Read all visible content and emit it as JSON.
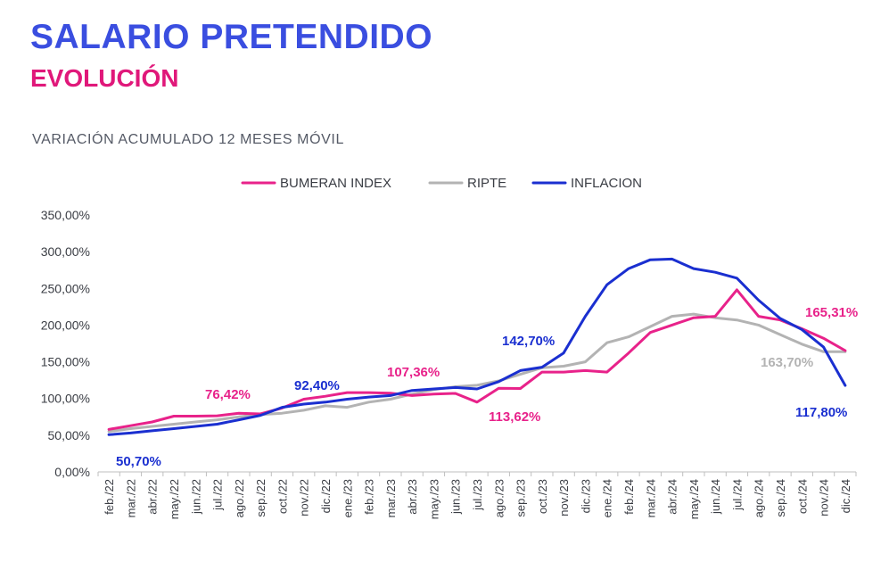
{
  "header": {
    "title": "SALARIO PRETENDIDO",
    "subtitle": "EVOLUCIÓN",
    "title_color": "#3a4ee0",
    "subtitle_color": "#e0187a"
  },
  "chart_data": {
    "type": "line",
    "title": "VARIACIÓN ACUMULADO 12 MESES MÓVIL",
    "xlabel": "",
    "ylabel": "",
    "ylim": [
      0,
      350
    ],
    "y_ticks": [
      "0,00%",
      "50,00%",
      "100,00%",
      "150,00%",
      "200,00%",
      "250,00%",
      "300,00%",
      "350,00%"
    ],
    "grid": false,
    "legend_position": "top-center",
    "categories": [
      "feb./22",
      "mar./22",
      "abr./22",
      "may./22",
      "jun./22",
      "jul./22",
      "ago./22",
      "sep./22",
      "oct./22",
      "nov./22",
      "dic./22",
      "ene./23",
      "feb./23",
      "mar./23",
      "abr./23",
      "may./23",
      "jun./23",
      "jul./23",
      "ago./23",
      "sep./23",
      "oct./23",
      "nov./23",
      "dic./23",
      "ene./24",
      "feb./24",
      "mar./24",
      "abr./24",
      "may./24",
      "jun./24",
      "jul./24",
      "ago./24",
      "sep./24",
      "oct./24",
      "nov./24",
      "dic./24"
    ],
    "series": [
      {
        "name": "BUMERAN INDEX",
        "color": "#e8228a",
        "values": [
          58,
          63,
          68,
          76,
          76,
          76.42,
          80,
          79,
          87,
          99,
          103,
          108,
          108,
          107.36,
          104,
          106,
          107,
          95,
          114,
          113.62,
          136,
          136,
          138,
          136,
          162,
          190,
          200,
          210,
          212,
          248,
          212,
          207,
          195,
          182,
          165.31
        ]
      },
      {
        "name": "RIPTE",
        "color": "#b3b3b3",
        "values": [
          55,
          59,
          62,
          65,
          68,
          71,
          75,
          78,
          80,
          84,
          90,
          88,
          95,
          99,
          106,
          112,
          116,
          118,
          124,
          133,
          142,
          144,
          150,
          176,
          184,
          198,
          212,
          215,
          210,
          207,
          200,
          187,
          174,
          163.7,
          163.7
        ]
      },
      {
        "name": "INFLACION",
        "color": "#1a2fd0",
        "values": [
          50.7,
          53,
          56,
          59,
          62,
          65,
          71,
          77,
          88,
          92.4,
          95,
          99,
          102,
          104,
          111,
          113,
          115,
          113,
          123,
          138,
          142.7,
          162,
          212,
          255,
          277,
          289,
          290,
          277,
          272,
          264,
          234,
          209,
          194,
          170,
          117.8
        ]
      }
    ],
    "annotations": [
      {
        "text": "50,70%",
        "series": "INFLACION"
      },
      {
        "text": "76,42%",
        "series": "BUMERAN INDEX"
      },
      {
        "text": "92,40%",
        "series": "INFLACION"
      },
      {
        "text": "107,36%",
        "series": "BUMERAN INDEX"
      },
      {
        "text": "113,62%",
        "series": "BUMERAN INDEX"
      },
      {
        "text": "142,70%",
        "series": "INFLACION"
      },
      {
        "text": "165,31%",
        "series": "BUMERAN INDEX"
      },
      {
        "text": "163,70%",
        "series": "RIPTE"
      },
      {
        "text": "117,80%",
        "series": "INFLACION"
      }
    ]
  }
}
